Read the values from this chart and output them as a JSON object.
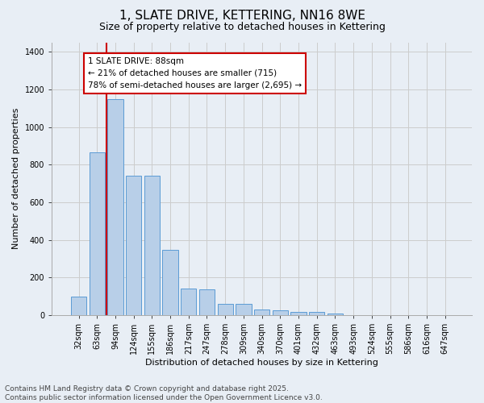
{
  "title": "1, SLATE DRIVE, KETTERING, NN16 8WE",
  "subtitle": "Size of property relative to detached houses in Kettering",
  "xlabel": "Distribution of detached houses by size in Kettering",
  "ylabel": "Number of detached properties",
  "categories": [
    "32sqm",
    "63sqm",
    "94sqm",
    "124sqm",
    "155sqm",
    "186sqm",
    "217sqm",
    "247sqm",
    "278sqm",
    "309sqm",
    "340sqm",
    "370sqm",
    "401sqm",
    "432sqm",
    "463sqm",
    "493sqm",
    "524sqm",
    "555sqm",
    "586sqm",
    "616sqm",
    "647sqm"
  ],
  "values": [
    100,
    865,
    1150,
    740,
    740,
    345,
    140,
    135,
    60,
    58,
    30,
    25,
    18,
    18,
    8,
    0,
    0,
    0,
    0,
    0,
    0
  ],
  "bar_color": "#b8cfe8",
  "bar_edge_color": "#5b9bd5",
  "bar_edge_width": 0.7,
  "vline_x_index": 2,
  "vline_color": "#cc0000",
  "annotation_text": "1 SLATE DRIVE: 88sqm\n← 21% of detached houses are smaller (715)\n78% of semi-detached houses are larger (2,695) →",
  "annotation_box_color": "#ffffff",
  "annotation_box_edge_color": "#cc0000",
  "ylim": [
    0,
    1450
  ],
  "yticks": [
    0,
    200,
    400,
    600,
    800,
    1000,
    1200,
    1400
  ],
  "grid_color": "#cccccc",
  "bg_color": "#e8eef5",
  "footer_line1": "Contains HM Land Registry data © Crown copyright and database right 2025.",
  "footer_line2": "Contains public sector information licensed under the Open Government Licence v3.0.",
  "title_fontsize": 11,
  "subtitle_fontsize": 9,
  "axis_label_fontsize": 8,
  "tick_fontsize": 7,
  "annotation_fontsize": 7.5,
  "footer_fontsize": 6.5
}
